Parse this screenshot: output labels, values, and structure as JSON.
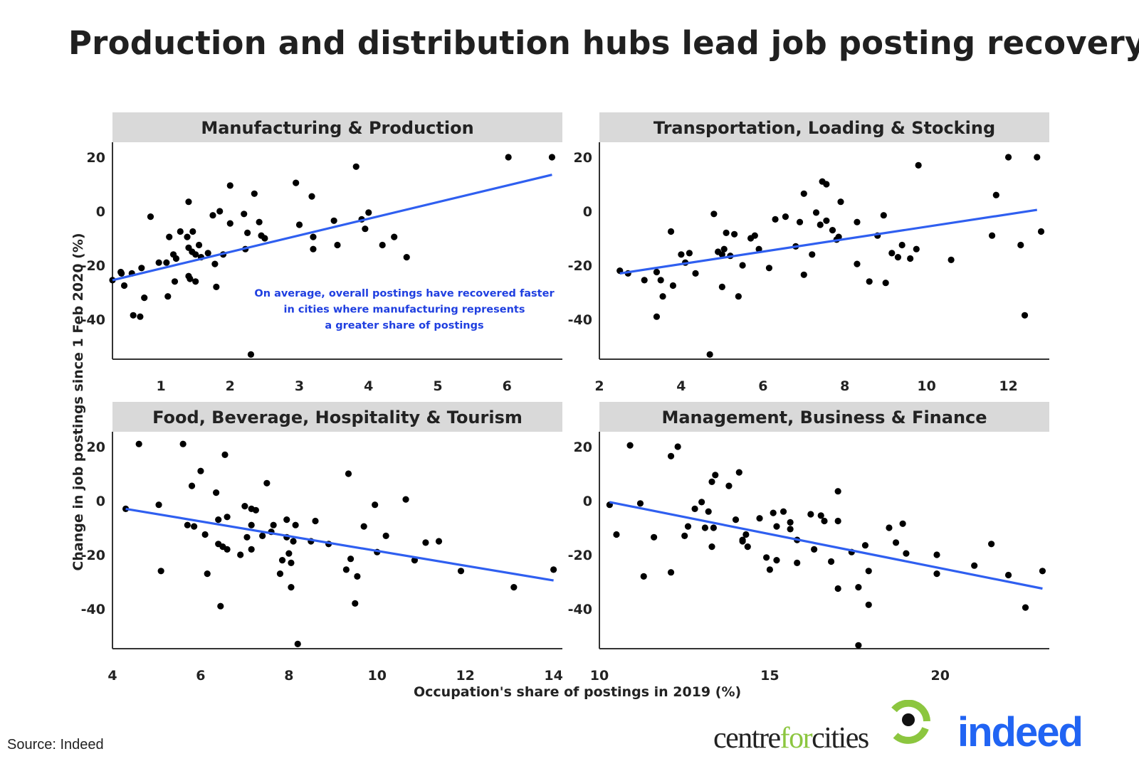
{
  "title": "Production and distribution hubs lead job posting recovery",
  "y_axis_label": "Change in job postings since 1 Feb 2020 (%)",
  "x_axis_label": "Occupation's share of postings in 2019 (%)",
  "source": "Source: Indeed",
  "logos": {
    "centreforcities_parts": [
      "centre",
      "for",
      "cities"
    ],
    "indeed": "indeed"
  },
  "colors": {
    "trend": "#2f5ff0",
    "annotation": "#1f3fe0",
    "points": "#000000",
    "strip": "#d9d9d9",
    "axis": "#333333",
    "cfc_green": "#8cc63f",
    "indeed_blue": "#2164f3"
  },
  "chart_data": [
    {
      "type": "scatter",
      "title": "Manufacturing & Production",
      "xlim": [
        0.3,
        6.8
      ],
      "ylim": [
        -56,
        23
      ],
      "x_ticks": [
        1,
        2,
        3,
        4,
        5,
        6
      ],
      "y_ticks": [
        20,
        0,
        -20,
        -40
      ],
      "trend": [
        [
          0.3,
          -25.5
        ],
        [
          6.65,
          13.5
        ]
      ],
      "annotation": [
        "On average, overall postings have recovered faster",
        "in cities where manufacturing represents",
        "a greater share of postings"
      ],
      "points": [
        [
          0.3,
          -25.5
        ],
        [
          0.42,
          -22.5
        ],
        [
          0.43,
          -23
        ],
        [
          0.47,
          -27.5
        ],
        [
          0.58,
          -23
        ],
        [
          0.6,
          -38.5
        ],
        [
          0.7,
          -39
        ],
        [
          0.72,
          -21
        ],
        [
          0.76,
          -32
        ],
        [
          0.85,
          -2
        ],
        [
          0.97,
          -19
        ],
        [
          1.08,
          -19
        ],
        [
          1.1,
          -31.5
        ],
        [
          1.12,
          -9.5
        ],
        [
          1.18,
          -16
        ],
        [
          1.22,
          -17.5
        ],
        [
          1.2,
          -26
        ],
        [
          1.28,
          -7.5
        ],
        [
          1.38,
          -9.5
        ],
        [
          1.4,
          -13.5
        ],
        [
          1.4,
          3.5
        ],
        [
          1.45,
          -15
        ],
        [
          1.46,
          -7.5
        ],
        [
          1.4,
          -24
        ],
        [
          1.42,
          -25
        ],
        [
          1.5,
          -26
        ],
        [
          1.5,
          -16
        ],
        [
          1.55,
          -12.5
        ],
        [
          1.58,
          -17
        ],
        [
          1.68,
          -15.5
        ],
        [
          1.75,
          -1.5
        ],
        [
          1.78,
          -19.5
        ],
        [
          1.8,
          -28
        ],
        [
          1.85,
          0
        ],
        [
          1.9,
          -16
        ],
        [
          2.0,
          9.5
        ],
        [
          2.0,
          -4.5
        ],
        [
          2.2,
          -1
        ],
        [
          2.22,
          -14
        ],
        [
          2.25,
          -8
        ],
        [
          2.3,
          -53
        ],
        [
          2.35,
          6.5
        ],
        [
          2.42,
          -4
        ],
        [
          2.45,
          -9
        ],
        [
          2.5,
          -10
        ],
        [
          2.95,
          10.5
        ],
        [
          3.0,
          -5
        ],
        [
          3.18,
          5.5
        ],
        [
          3.2,
          -9.5
        ],
        [
          3.2,
          -14
        ],
        [
          3.5,
          -3.5
        ],
        [
          3.55,
          -12.5
        ],
        [
          3.82,
          16.5
        ],
        [
          3.9,
          -3
        ],
        [
          3.95,
          -6.5
        ],
        [
          4.0,
          -0.5
        ],
        [
          4.2,
          -12.5
        ],
        [
          4.37,
          -9.5
        ],
        [
          4.55,
          -17
        ],
        [
          6.02,
          20
        ],
        [
          6.65,
          20
        ]
      ]
    },
    {
      "type": "scatter",
      "title": "Transportation, Loading & Stocking",
      "xlim": [
        2.0,
        13.0
      ],
      "ylim": [
        -56,
        23
      ],
      "x_ticks": [
        2,
        4,
        6,
        8,
        10,
        12
      ],
      "y_ticks": [
        20,
        0,
        -20,
        -40
      ],
      "trend": [
        [
          2.5,
          -23
        ],
        [
          12.7,
          0.5
        ]
      ],
      "points": [
        [
          2.5,
          -22
        ],
        [
          2.7,
          -23
        ],
        [
          3.1,
          -25.5
        ],
        [
          3.4,
          -39
        ],
        [
          3.5,
          -25.5
        ],
        [
          3.55,
          -31.5
        ],
        [
          3.4,
          -22.5
        ],
        [
          3.8,
          -27.5
        ],
        [
          3.75,
          -7.5
        ],
        [
          4.0,
          -16
        ],
        [
          4.1,
          -19
        ],
        [
          4.2,
          -15.5
        ],
        [
          4.35,
          -23
        ],
        [
          4.7,
          -53
        ],
        [
          4.8,
          -1
        ],
        [
          4.9,
          -15
        ],
        [
          5.0,
          -16
        ],
        [
          5.05,
          -14
        ],
        [
          5.1,
          -8
        ],
        [
          5.2,
          -16.5
        ],
        [
          5.0,
          -28
        ],
        [
          5.3,
          -8.5
        ],
        [
          5.4,
          -31.5
        ],
        [
          5.5,
          -20
        ],
        [
          5.7,
          -10
        ],
        [
          5.8,
          -9
        ],
        [
          5.9,
          -14
        ],
        [
          6.15,
          -21
        ],
        [
          6.3,
          -3
        ],
        [
          6.55,
          -2
        ],
        [
          6.8,
          -13
        ],
        [
          6.9,
          -4
        ],
        [
          7.0,
          6.5
        ],
        [
          7.0,
          -23.5
        ],
        [
          7.2,
          -16
        ],
        [
          7.3,
          -0.5
        ],
        [
          7.4,
          -5
        ],
        [
          7.45,
          11
        ],
        [
          7.55,
          10
        ],
        [
          7.55,
          -3.5
        ],
        [
          7.7,
          -7
        ],
        [
          7.8,
          -10.5
        ],
        [
          7.85,
          -9.5
        ],
        [
          7.9,
          3.5
        ],
        [
          8.3,
          -19.5
        ],
        [
          8.3,
          -4
        ],
        [
          8.6,
          -26
        ],
        [
          8.8,
          -9
        ],
        [
          8.95,
          -1.5
        ],
        [
          9.0,
          -26.5
        ],
        [
          9.15,
          -15.5
        ],
        [
          9.3,
          -17
        ],
        [
          9.4,
          -12.5
        ],
        [
          9.6,
          -17.5
        ],
        [
          9.75,
          -14
        ],
        [
          9.8,
          17
        ],
        [
          10.6,
          -18
        ],
        [
          11.6,
          -9
        ],
        [
          11.7,
          6
        ],
        [
          12.0,
          20
        ],
        [
          12.3,
          -12.5
        ],
        [
          12.4,
          -38.5
        ],
        [
          12.7,
          20
        ],
        [
          12.8,
          -7.5
        ]
      ]
    },
    {
      "type": "scatter",
      "title": "Food, Beverage, Hospitality & Tourism",
      "xlim": [
        4.0,
        14.2
      ],
      "ylim": [
        -56,
        23
      ],
      "x_ticks": [
        4,
        6,
        8,
        10,
        12,
        14
      ],
      "y_ticks": [
        20,
        0,
        -20,
        -40
      ],
      "trend": [
        [
          4.3,
          -3
        ],
        [
          14.0,
          -29.5
        ]
      ],
      "points": [
        [
          4.3,
          -3
        ],
        [
          4.6,
          21
        ],
        [
          5.05,
          -1.5
        ],
        [
          5.1,
          -26
        ],
        [
          5.6,
          21
        ],
        [
          5.7,
          -9
        ],
        [
          5.85,
          -9.5
        ],
        [
          5.8,
          5.5
        ],
        [
          6.0,
          11
        ],
        [
          6.1,
          -12.5
        ],
        [
          6.15,
          -27
        ],
        [
          6.35,
          3
        ],
        [
          6.4,
          -16
        ],
        [
          6.4,
          -7
        ],
        [
          6.45,
          -39
        ],
        [
          6.5,
          -17
        ],
        [
          6.55,
          17
        ],
        [
          6.6,
          -6
        ],
        [
          6.6,
          -18
        ],
        [
          6.9,
          -20
        ],
        [
          7.0,
          -2
        ],
        [
          7.05,
          -13.5
        ],
        [
          7.15,
          -9
        ],
        [
          7.15,
          -18
        ],
        [
          7.15,
          -3
        ],
        [
          7.25,
          -3.5
        ],
        [
          7.4,
          -13
        ],
        [
          7.5,
          6.5
        ],
        [
          7.6,
          -11.5
        ],
        [
          7.65,
          -9
        ],
        [
          7.8,
          -27
        ],
        [
          7.85,
          -22
        ],
        [
          7.95,
          -7
        ],
        [
          7.95,
          -13.5
        ],
        [
          8.05,
          -23
        ],
        [
          8.1,
          -15
        ],
        [
          8.15,
          -9
        ],
        [
          8.0,
          -19.5
        ],
        [
          8.05,
          -32
        ],
        [
          8.2,
          -53
        ],
        [
          8.5,
          -15
        ],
        [
          8.6,
          -7.5
        ],
        [
          8.9,
          -16
        ],
        [
          9.3,
          -25.5
        ],
        [
          9.35,
          10
        ],
        [
          9.4,
          -21.5
        ],
        [
          9.5,
          -38
        ],
        [
          9.55,
          -28
        ],
        [
          9.7,
          -9.5
        ],
        [
          9.95,
          -1.5
        ],
        [
          10.0,
          -19
        ],
        [
          10.2,
          -13
        ],
        [
          10.65,
          0.5
        ],
        [
          10.85,
          -22
        ],
        [
          11.1,
          -15.5
        ],
        [
          11.4,
          -15
        ],
        [
          11.9,
          -26
        ],
        [
          13.1,
          -32
        ],
        [
          14.0,
          -25.5
        ]
      ]
    },
    {
      "type": "scatter",
      "title": "Management, Business & Finance",
      "xlim": [
        10.0,
        23.2
      ],
      "ylim": [
        -56,
        23
      ],
      "x_ticks": [
        10,
        15,
        20
      ],
      "y_ticks": [
        20,
        0,
        -20,
        -40
      ],
      "trend": [
        [
          10.3,
          -0.5
        ],
        [
          23.0,
          -32.5
        ]
      ],
      "points": [
        [
          10.3,
          -1.5
        ],
        [
          10.5,
          -12.5
        ],
        [
          10.9,
          20.5
        ],
        [
          11.2,
          -1
        ],
        [
          11.3,
          -28
        ],
        [
          11.6,
          -13.5
        ],
        [
          12.1,
          -26.5
        ],
        [
          12.1,
          16.5
        ],
        [
          12.3,
          20
        ],
        [
          12.5,
          -13
        ],
        [
          12.6,
          -9.5
        ],
        [
          12.8,
          -3
        ],
        [
          13.0,
          -0.5
        ],
        [
          13.1,
          -10
        ],
        [
          13.2,
          -4
        ],
        [
          13.3,
          7
        ],
        [
          13.3,
          -17
        ],
        [
          13.4,
          9.5
        ],
        [
          13.35,
          -10
        ],
        [
          13.8,
          5.5
        ],
        [
          14.1,
          10.5
        ],
        [
          14.0,
          -7
        ],
        [
          14.2,
          -14.5
        ],
        [
          14.2,
          -15
        ],
        [
          14.3,
          -12.5
        ],
        [
          14.35,
          -17
        ],
        [
          14.7,
          -6.5
        ],
        [
          14.9,
          -21
        ],
        [
          15.0,
          -25.5
        ],
        [
          15.1,
          -4.5
        ],
        [
          15.2,
          -9.5
        ],
        [
          15.2,
          -22
        ],
        [
          15.4,
          -4
        ],
        [
          15.6,
          -8
        ],
        [
          15.6,
          -10.5
        ],
        [
          15.8,
          -14.5
        ],
        [
          15.8,
          -23
        ],
        [
          16.2,
          -5
        ],
        [
          16.3,
          -18
        ],
        [
          16.5,
          -5.5
        ],
        [
          16.6,
          -7.5
        ],
        [
          16.8,
          -22.5
        ],
        [
          17.0,
          3.5
        ],
        [
          17.0,
          -32.5
        ],
        [
          17.0,
          -7.5
        ],
        [
          17.4,
          -19
        ],
        [
          17.6,
          -32
        ],
        [
          17.6,
          -53.5
        ],
        [
          17.8,
          -16.5
        ],
        [
          17.9,
          -38.5
        ],
        [
          17.9,
          -26
        ],
        [
          18.5,
          -10
        ],
        [
          18.7,
          -15.5
        ],
        [
          18.9,
          -8.5
        ],
        [
          19.0,
          -19.5
        ],
        [
          19.9,
          -20
        ],
        [
          19.9,
          -27
        ],
        [
          21.0,
          -24
        ],
        [
          21.5,
          -16
        ],
        [
          22.0,
          -27.5
        ],
        [
          22.5,
          -39.5
        ],
        [
          23.0,
          -26
        ]
      ]
    }
  ]
}
